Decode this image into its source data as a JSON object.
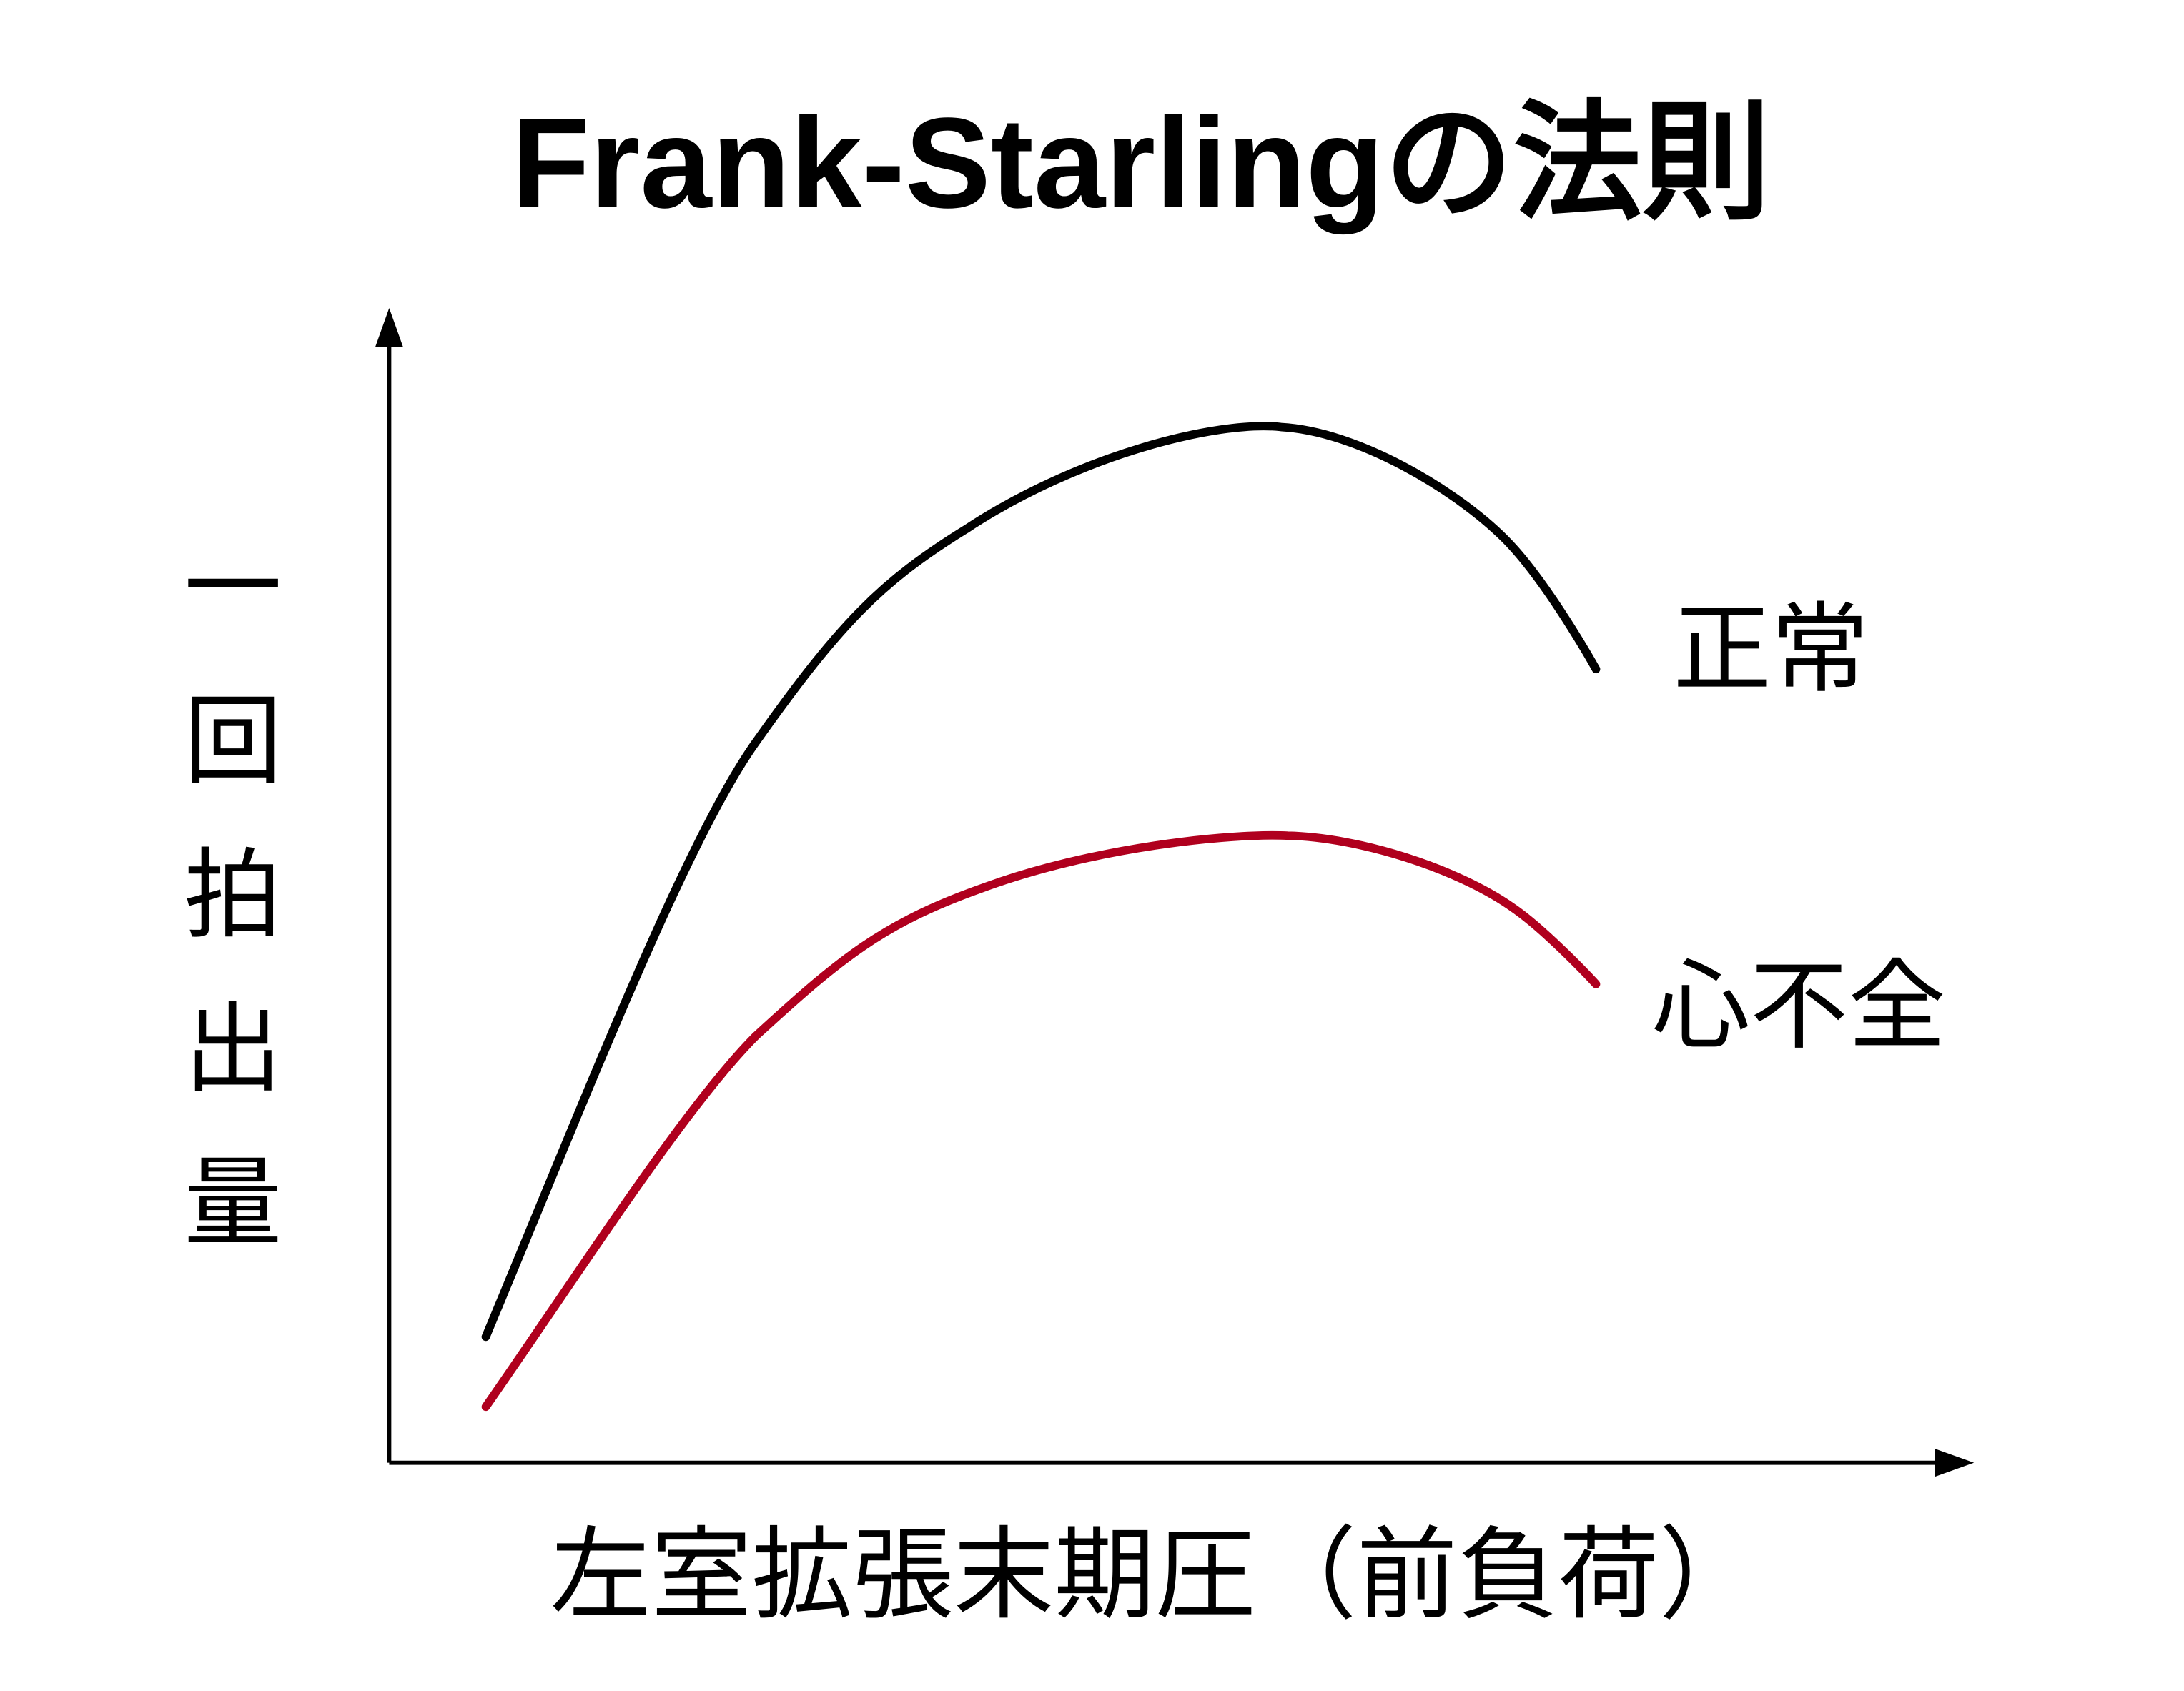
{
  "title": "Frank-Starlingの法則",
  "y_axis_label": "一回拍出量",
  "x_axis_label": "左室拡張末期圧（前負荷）",
  "curves": [
    {
      "label": "正常"
    },
    {
      "label": "心不全"
    }
  ]
}
